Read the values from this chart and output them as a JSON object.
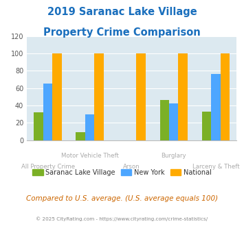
{
  "title_line1": "2019 Saranac Lake Village",
  "title_line2": "Property Crime Comparison",
  "title_color": "#1a6fbd",
  "saranac": [
    32,
    9,
    0,
    46,
    33
  ],
  "newyork": [
    65,
    30,
    0,
    42,
    76
  ],
  "national": [
    100,
    100,
    100,
    100,
    100
  ],
  "saranac_color": "#7bb026",
  "newyork_color": "#4da6ff",
  "national_color": "#ffaa00",
  "background_color": "#dce9f0",
  "ylim": [
    0,
    120
  ],
  "yticks": [
    0,
    20,
    40,
    60,
    80,
    100,
    120
  ],
  "bar_width": 0.22,
  "label_top": [
    "",
    "Motor Vehicle Theft",
    "",
    "Burglary",
    ""
  ],
  "label_bot": [
    "All Property Crime",
    "",
    "Arson",
    "",
    "Larceny & Theft"
  ],
  "footnote": "Compared to U.S. average. (U.S. average equals 100)",
  "copyright": "© 2025 CityRating.com - https://www.cityrating.com/crime-statistics/",
  "legend_labels": [
    "Saranac Lake Village",
    "New York",
    "National"
  ],
  "footnote_color": "#cc6600",
  "copyright_color": "#888888",
  "label_color": "#aaaaaa",
  "ytick_color": "#555555"
}
